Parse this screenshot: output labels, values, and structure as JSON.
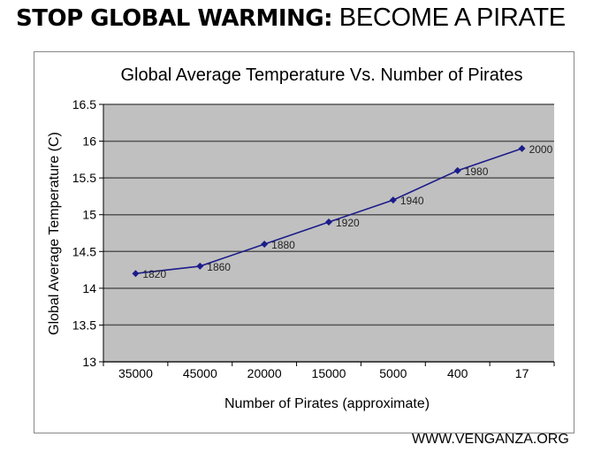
{
  "header": {
    "bold": "STOP GLOBAL WARMING:",
    "normal": "BECOME A PIRATE"
  },
  "footer": "WWW.VENGANZA.ORG",
  "chart_data": {
    "type": "line",
    "title": "Global Average Temperature Vs. Number of Pirates",
    "xlabel": "Number of Pirates (approximate)",
    "ylabel": "Global Average Temperature (C)",
    "categories": [
      "35000",
      "45000",
      "20000",
      "15000",
      "5000",
      "400",
      "17"
    ],
    "values": [
      14.2,
      14.3,
      14.6,
      14.9,
      15.2,
      15.6,
      15.9
    ],
    "data_labels": [
      "1820",
      "1860",
      "1880",
      "1920",
      "1940",
      "1980",
      "2000"
    ],
    "yticks": [
      "13",
      "13.5",
      "14",
      "14.5",
      "15",
      "15.5",
      "16",
      "16.5"
    ],
    "ylim": [
      13,
      16.5
    ],
    "grid": true,
    "colors": {
      "line": "#1c1c8a",
      "plot_bg": "#c0c0c0",
      "grid": "#555555"
    }
  }
}
